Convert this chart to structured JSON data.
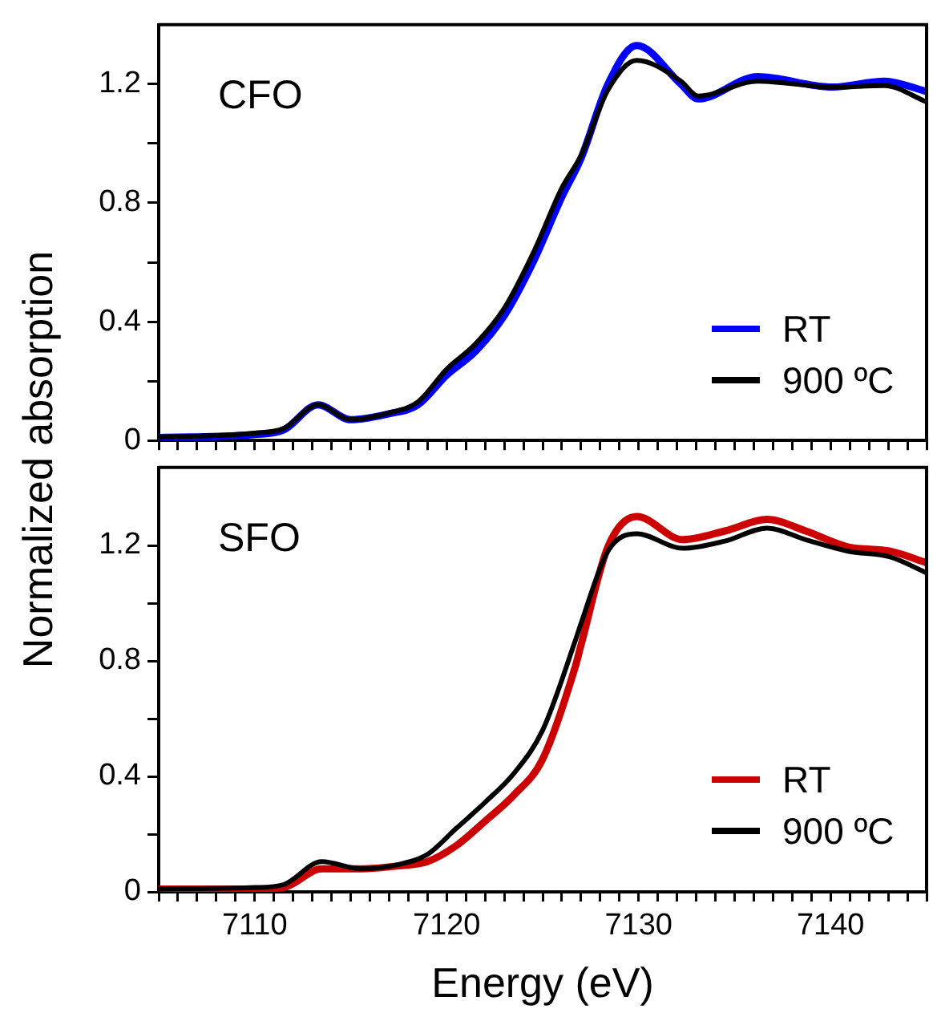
{
  "chart_data": [
    {
      "type": "line",
      "ylabel": "Normalized absorption",
      "annotations": [
        "CFO"
      ],
      "legend": "bottom right",
      "marker": "none",
      "grid": false,
      "tick_labels": "y",
      "xlim": [
        7105,
        7145
      ],
      "ylim": [
        0,
        1.4
      ],
      "xticks": [
        7105,
        7106,
        7107,
        7108,
        7109,
        7110,
        7111,
        7112,
        7113,
        7114,
        7115,
        7116,
        7117,
        7118,
        7119,
        7120,
        7121,
        7122,
        7123,
        7124,
        7125,
        7126,
        7127,
        7128,
        7129,
        7130,
        7131,
        7132,
        7133,
        7134,
        7135,
        7136,
        7137,
        7138,
        7139,
        7140,
        7141,
        7142,
        7143,
        7144,
        7145
      ],
      "yticks": [
        0,
        {
          "value": 0.2,
          "label": null
        },
        0.4,
        {
          "value": 0.6,
          "label": null
        },
        0.8,
        {
          "value": 1.0,
          "label": null
        },
        1.2
      ],
      "x": [
        7105,
        7110,
        7111.5,
        7113.3,
        7115,
        7117,
        7118.5,
        7120,
        7121.5,
        7123,
        7124.5,
        7126,
        7127,
        7128.4,
        7129.9,
        7132.2,
        7133.1,
        7136.2,
        7140.1,
        7142.8,
        7145
      ],
      "series": [
        {
          "name": "RT",
          "color": "#0000ff",
          "values": [
            0.01,
            0.02,
            0.035,
            0.12,
            0.07,
            0.09,
            0.12,
            0.22,
            0.3,
            0.42,
            0.6,
            0.82,
            0.95,
            1.2,
            1.33,
            1.2,
            1.15,
            1.225,
            1.19,
            1.21,
            1.175
          ]
        },
        {
          "name": "900 ºC",
          "color": "#000000",
          "values": [
            0.01,
            0.025,
            0.04,
            0.12,
            0.07,
            0.093,
            0.13,
            0.24,
            0.325,
            0.445,
            0.63,
            0.85,
            0.96,
            1.18,
            1.28,
            1.21,
            1.16,
            1.21,
            1.19,
            1.195,
            1.14
          ]
        }
      ]
    },
    {
      "type": "line",
      "xlabel": "Energy (eV)",
      "annotations": [
        "SFO"
      ],
      "legend": "bottom right",
      "marker": "none",
      "grid": false,
      "xlim": [
        7105,
        7145
      ],
      "ylim": [
        0,
        1.47
      ],
      "xticks": [
        {
          "value": 7105,
          "label": null
        },
        {
          "value": 7106,
          "label": null
        },
        {
          "value": 7107,
          "label": null
        },
        {
          "value": 7108,
          "label": null
        },
        {
          "value": 7109,
          "label": null
        },
        7110,
        {
          "value": 7111,
          "label": null
        },
        {
          "value": 7112,
          "label": null
        },
        {
          "value": 7113,
          "label": null
        },
        {
          "value": 7114,
          "label": null
        },
        {
          "value": 7115,
          "label": null
        },
        {
          "value": 7116,
          "label": null
        },
        {
          "value": 7117,
          "label": null
        },
        {
          "value": 7118,
          "label": null
        },
        {
          "value": 7119,
          "label": null
        },
        7120,
        {
          "value": 7121,
          "label": null
        },
        {
          "value": 7122,
          "label": null
        },
        {
          "value": 7123,
          "label": null
        },
        {
          "value": 7124,
          "label": null
        },
        {
          "value": 7125,
          "label": null
        },
        {
          "value": 7126,
          "label": null
        },
        {
          "value": 7127,
          "label": null
        },
        {
          "value": 7128,
          "label": null
        },
        {
          "value": 7129,
          "label": null
        },
        7130,
        {
          "value": 7131,
          "label": null
        },
        {
          "value": 7132,
          "label": null
        },
        {
          "value": 7133,
          "label": null
        },
        {
          "value": 7134,
          "label": null
        },
        {
          "value": 7135,
          "label": null
        },
        {
          "value": 7136,
          "label": null
        },
        {
          "value": 7137,
          "label": null
        },
        {
          "value": 7138,
          "label": null
        },
        {
          "value": 7139,
          "label": null
        },
        7140,
        {
          "value": 7141,
          "label": null
        },
        {
          "value": 7142,
          "label": null
        },
        {
          "value": 7143,
          "label": null
        },
        {
          "value": 7144,
          "label": null
        },
        {
          "value": 7145,
          "label": null
        }
      ],
      "yticks": [
        0,
        {
          "value": 0.2,
          "label": null
        },
        0.4,
        {
          "value": 0.6,
          "label": null
        },
        0.8,
        {
          "value": 1.0,
          "label": null
        },
        1.2
      ],
      "x": [
        7105,
        7110,
        7111.5,
        7113.5,
        7115.5,
        7117.5,
        7119,
        7120.5,
        7122,
        7123.5,
        7125,
        7126.7,
        7127,
        7128.4,
        7129.9,
        7132.3,
        7134.5,
        7136.7,
        7138.7,
        7140.9,
        7143.1,
        7145
      ],
      "series": [
        {
          "name": "RT",
          "color": "#cc0000",
          "values": [
            0.01,
            0.01,
            0.015,
            0.08,
            0.08,
            0.09,
            0.105,
            0.16,
            0.245,
            0.335,
            0.46,
            0.78,
            0.855,
            1.195,
            1.3,
            1.22,
            1.25,
            1.29,
            1.25,
            1.195,
            1.18,
            1.14
          ]
        },
        {
          "name": "900 ºC",
          "color": "#000000",
          "values": [
            0.01,
            0.015,
            0.025,
            0.105,
            0.08,
            0.095,
            0.13,
            0.22,
            0.31,
            0.41,
            0.56,
            0.87,
            0.93,
            1.18,
            1.24,
            1.19,
            1.215,
            1.26,
            1.22,
            1.18,
            1.16,
            1.105
          ]
        }
      ]
    }
  ]
}
